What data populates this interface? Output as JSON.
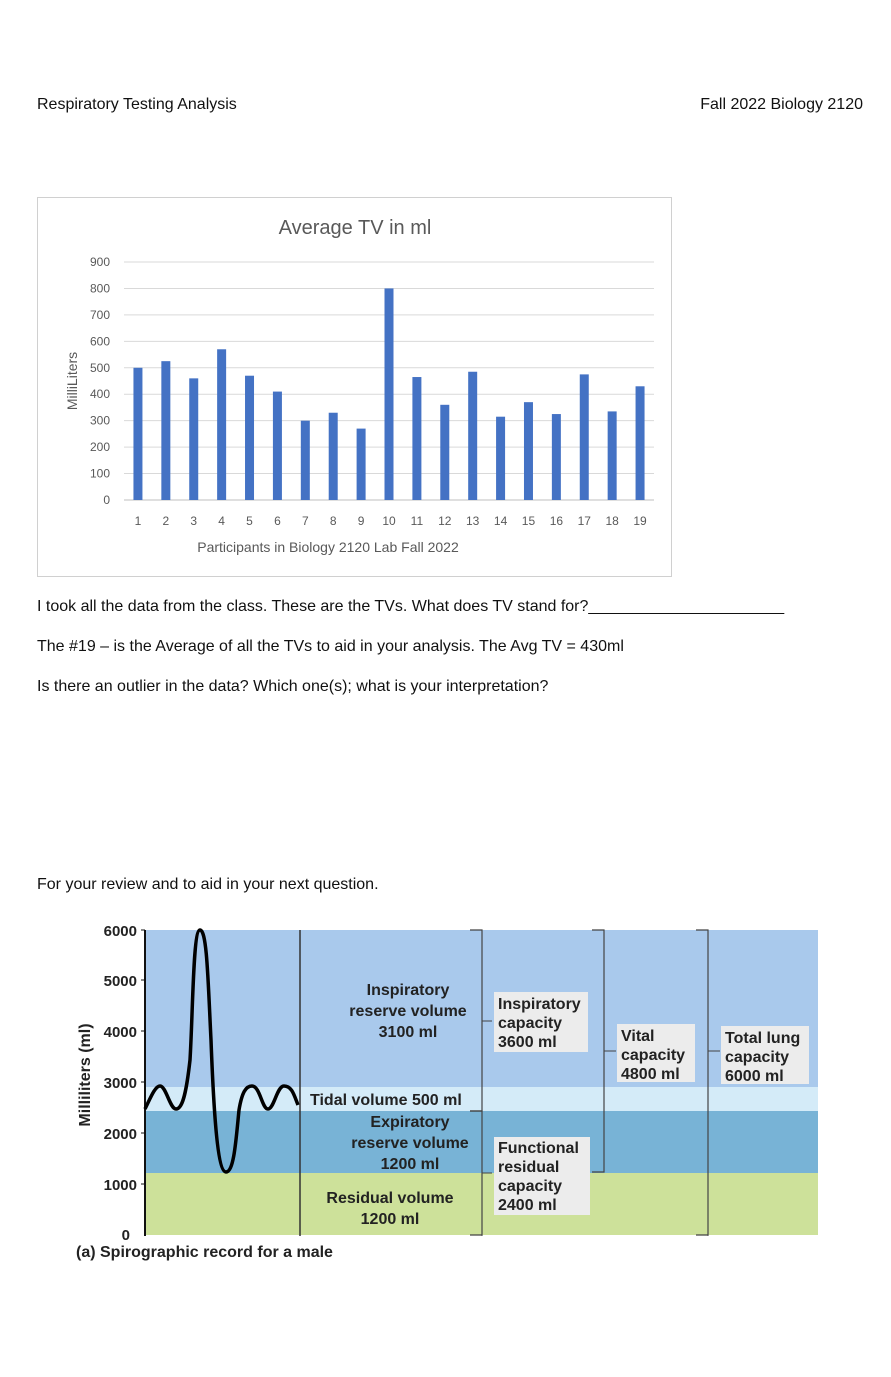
{
  "header": {
    "left": "Respiratory Testing Analysis",
    "right": "Fall 2022 Biology 2120"
  },
  "chart_data": {
    "type": "bar",
    "title": "Average TV in ml",
    "xlabel": "Participants in Biology 2120 Lab Fall 2022",
    "ylabel": "MilliLiters",
    "categories": [
      "1",
      "2",
      "3",
      "4",
      "5",
      "6",
      "7",
      "8",
      "9",
      "10",
      "11",
      "12",
      "13",
      "14",
      "15",
      "16",
      "17",
      "18",
      "19"
    ],
    "values": [
      500,
      525,
      460,
      570,
      470,
      410,
      300,
      330,
      270,
      800,
      465,
      360,
      485,
      315,
      370,
      325,
      475,
      335,
      430
    ],
    "yticks": [
      0,
      100,
      200,
      300,
      400,
      500,
      600,
      700,
      800,
      900
    ],
    "ylim": [
      0,
      900
    ],
    "grid": true,
    "bar_color": "#4472c4"
  },
  "questions": {
    "q1": "I took all the data from the class.  These are the TVs.  What does TV stand for?",
    "q1_blank": "______________________",
    "q2": "The #19 – is the Average of all the TVs to aid in your analysis.  The Avg TV =  430ml",
    "q3": "Is there an outlier in the data?  Which one(s); what is your interpretation?"
  },
  "review_text": "For your review and to aid in your next question.",
  "spirogram": {
    "ylabel": "Milliliters (ml)",
    "yticks": [
      "6000",
      "5000",
      "4000",
      "3000",
      "2000",
      "1000",
      "0"
    ],
    "caption": "(a) Spirographic record for a male",
    "irv": [
      "Inspiratory",
      "reserve volume",
      "3100 ml"
    ],
    "tidal": "Tidal volume 500 ml",
    "erv": [
      "Expiratory",
      "reserve volume",
      "1200 ml"
    ],
    "rv": [
      "Residual volume",
      "1200 ml"
    ],
    "ic": [
      "Inspiratory",
      "capacity",
      "3600 ml"
    ],
    "frc": [
      "Functional",
      "residual",
      "capacity",
      "2400 ml"
    ],
    "vc": [
      "Vital",
      "capacity",
      "4800 ml"
    ],
    "tlc": [
      "Total lung",
      "capacity",
      "6000 ml"
    ],
    "colors": {
      "irv": "#a9c9ec",
      "tidal": "#d4ebf8",
      "erv": "#78b3d6",
      "rv": "#cde19a"
    }
  }
}
